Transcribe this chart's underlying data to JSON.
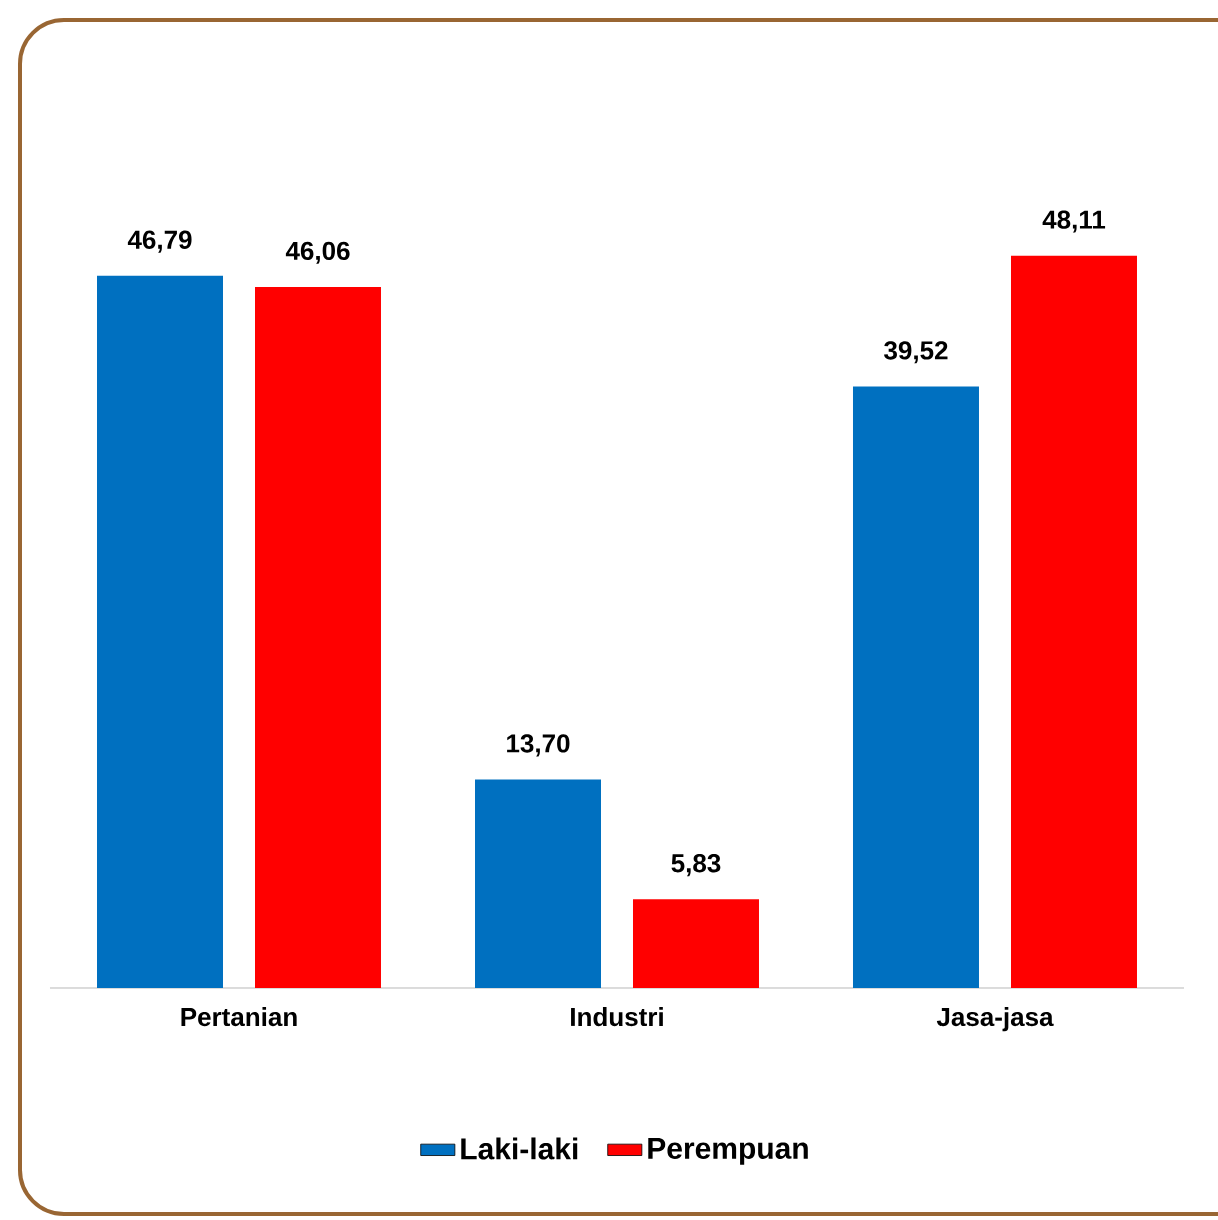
{
  "chart_data": {
    "type": "bar",
    "categories": [
      "Pertanian",
      "Industri",
      "Jasa-jasa"
    ],
    "series": [
      {
        "name": "Laki-laki",
        "color": "#0070c0",
        "values": [
          46.79,
          13.7,
          39.52
        ],
        "value_labels": [
          "46,79",
          "13,70",
          "39,52"
        ]
      },
      {
        "name": "Perempuan",
        "color": "#ff0000",
        "values": [
          46.06,
          5.83,
          48.11
        ],
        "value_labels": [
          "46,06",
          "5,83",
          "48,11"
        ]
      }
    ],
    "legend": "bottom"
  }
}
